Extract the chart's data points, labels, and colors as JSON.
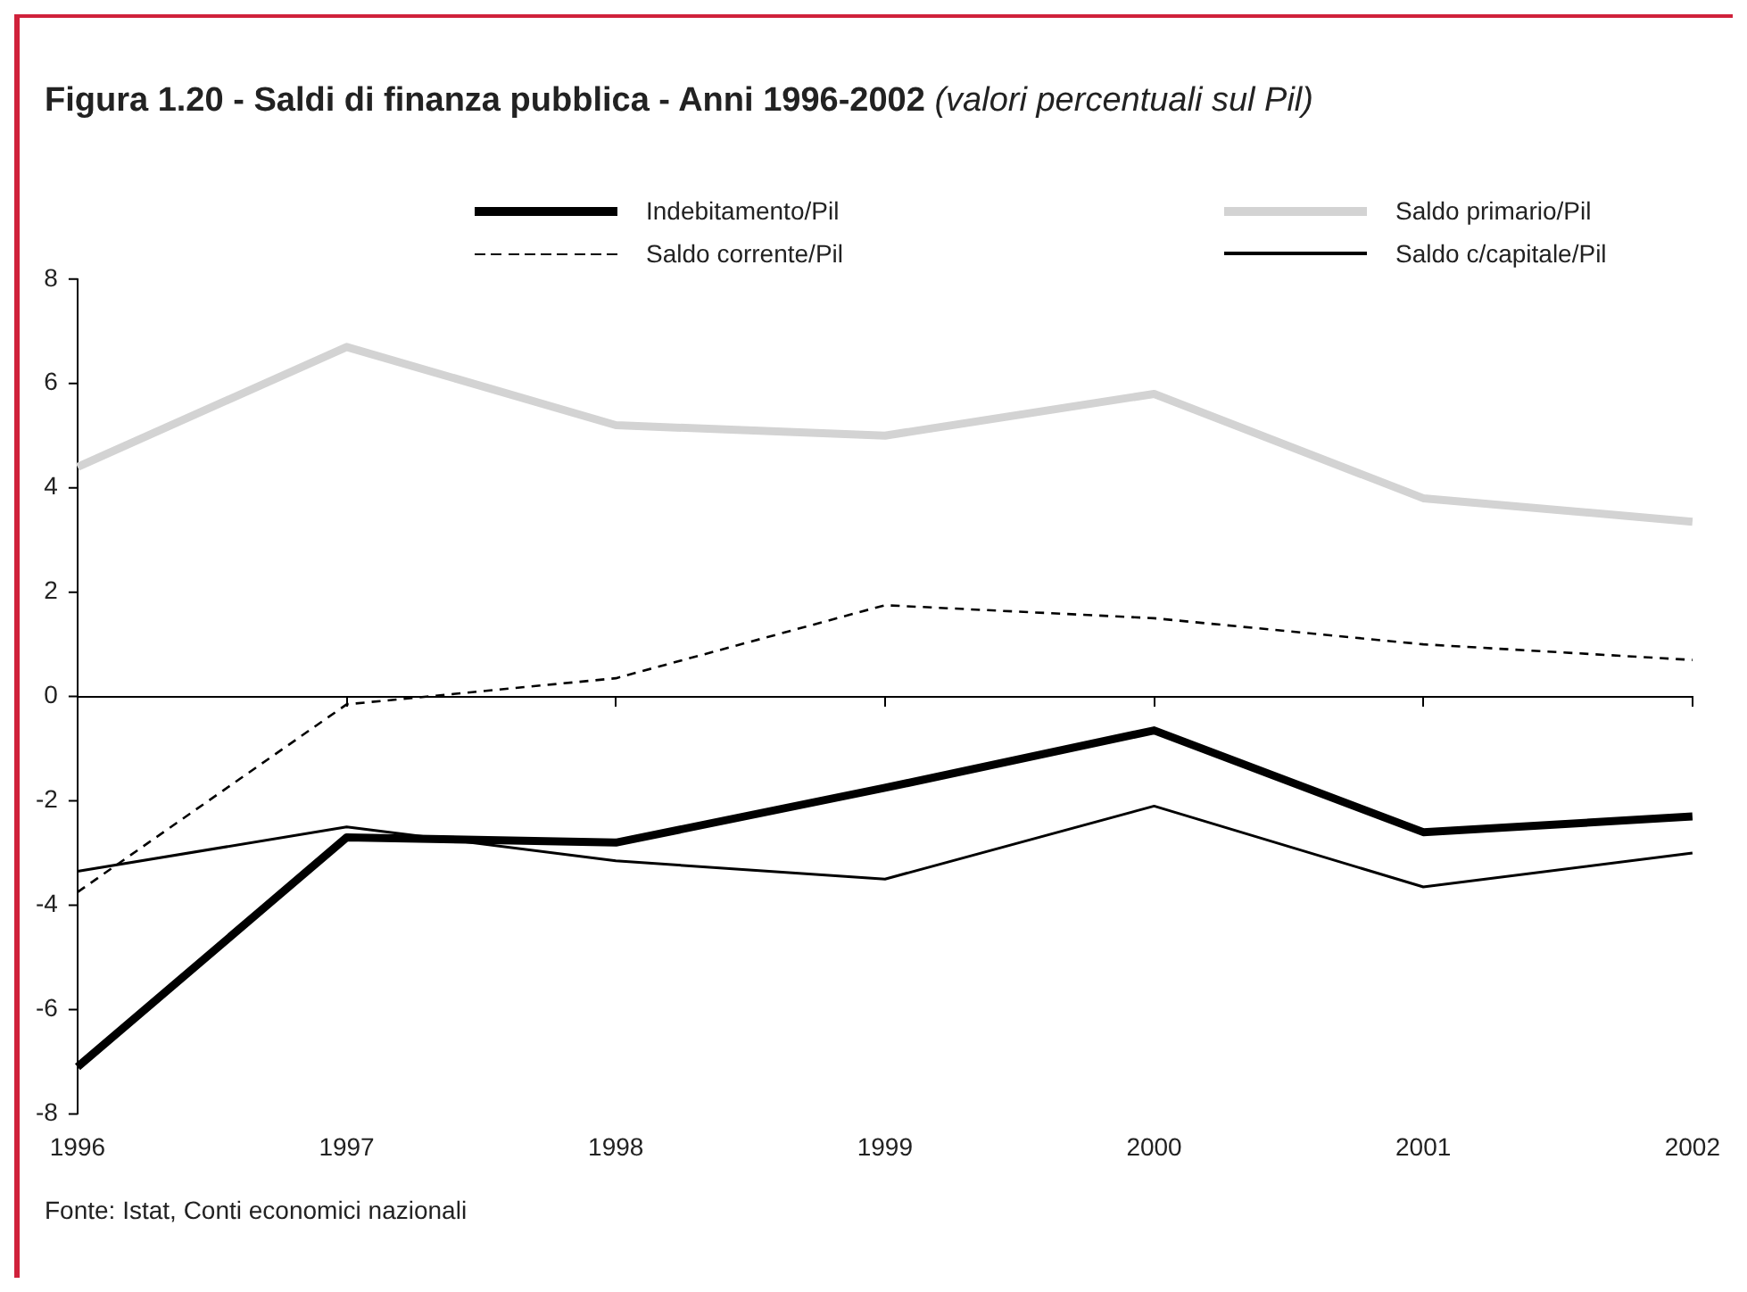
{
  "chart_data": {
    "type": "line",
    "title": "Figura 1.20 - Saldi di finanza pubblica - Anni 1996-2002",
    "subtitle": "(valori percentuali sul Pil)",
    "annotations": [
      "Fonte: Istat, Conti economici nazionali"
    ],
    "categories": [
      "1996",
      "1997",
      "1998",
      "1999",
      "2000",
      "2001",
      "2002"
    ],
    "series": [
      {
        "name": "Indebitamento/Pil",
        "color": "#000000",
        "values": [
          -7.1,
          -2.7,
          -2.8,
          -1.75,
          -0.65,
          -2.6,
          -2.3
        ]
      },
      {
        "name": "Saldo primario/Pil",
        "color": "#d3d3d3",
        "values": [
          4.4,
          6.7,
          5.2,
          5.0,
          5.8,
          3.8,
          3.35
        ]
      },
      {
        "name": "Saldo corrente/Pil",
        "color": "#000000",
        "line_style": "dashed",
        "values": [
          -3.75,
          -0.15,
          0.35,
          1.75,
          1.5,
          1.0,
          0.7
        ]
      },
      {
        "name": "Saldo c/capitale/Pil",
        "color": "#000000",
        "values": [
          -3.35,
          -2.5,
          -3.15,
          -3.5,
          -2.1,
          -3.65,
          -3.0
        ]
      }
    ],
    "ref_lines": [
      {
        "axis": "y",
        "value": 0,
        "color": "#000000"
      }
    ],
    "ylim": [
      -8,
      8
    ],
    "yticks": [
      -8,
      -6,
      -4,
      -2,
      0,
      2,
      4,
      6,
      8
    ],
    "grid": false,
    "legend": "top",
    "marker": "none",
    "line_style": "solid"
  }
}
